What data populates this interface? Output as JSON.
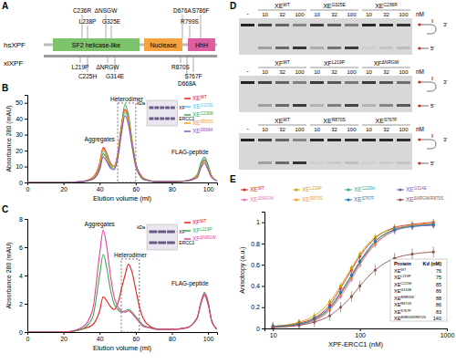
{
  "panel_labels": [
    "A",
    "B",
    "C",
    "D",
    "E"
  ],
  "diagram": {
    "proteins": [
      {
        "name": "hsXPF",
        "mutations": [
          "C236R",
          "L238P",
          "ΔNSGW",
          "G325E",
          "D676A",
          "R799S",
          "S786F"
        ]
      },
      {
        "name": "xlXPF",
        "mutations": [
          "L219P",
          "C225H",
          "ΔNRGW",
          "G314E",
          "R870S",
          "S767F",
          "D668A"
        ]
      }
    ],
    "domains": [
      {
        "name": "SF2 helicase-like",
        "color": "#7dc36b"
      },
      {
        "name": "Nuclease",
        "color": "#f4a340"
      },
      {
        "name": "HhH",
        "color": "#dd5fa0"
      }
    ]
  },
  "chart_data": [
    {
      "type": "line",
      "x_label": "Elution volume (ml)",
      "y_label": "Absorbance 280 (mAU)",
      "x": [
        0,
        20,
        30,
        36,
        40,
        42,
        44,
        46,
        48,
        50,
        52,
        54,
        56,
        58,
        60,
        62,
        64,
        68,
        72,
        80,
        88,
        94,
        96,
        98,
        100,
        102,
        105
      ],
      "xlim": [
        0,
        105
      ],
      "xticks": [
        0,
        20,
        40,
        60,
        80,
        100
      ],
      "ylim": [
        0,
        55
      ],
      "yticks": [
        0,
        10,
        20,
        30,
        40,
        50
      ],
      "series": [
        {
          "name": "XEWT",
          "color": "#e02020",
          "values": [
            0,
            0,
            0.5,
            3,
            12,
            22,
            18,
            12,
            10,
            18,
            35,
            46,
            40,
            25,
            12,
            6,
            3,
            1,
            0.5,
            0.5,
            1,
            4,
            10,
            14,
            10,
            4,
            1
          ]
        },
        {
          "name": "XEG325E",
          "color": "#5bc8e8",
          "values": [
            0,
            0,
            0.5,
            2,
            10,
            20,
            16,
            11,
            10,
            17,
            32,
            44,
            38,
            24,
            11,
            5,
            3,
            1,
            0.5,
            0.5,
            1,
            4,
            11,
            15,
            10,
            4,
            1
          ]
        },
        {
          "name": "XEC236R",
          "color": "#3aa84a",
          "values": [
            0,
            0,
            0.5,
            2,
            9,
            18,
            15,
            10,
            9,
            16,
            34,
            49,
            42,
            26,
            12,
            5,
            2,
            1,
            0.5,
            0.5,
            1,
            5,
            12,
            16,
            11,
            4,
            1
          ]
        },
        {
          "name": "XER870S",
          "color": "#f39a1e",
          "values": [
            0,
            0,
            0.5,
            3,
            11,
            21,
            17,
            11,
            10,
            17,
            33,
            45,
            39,
            24,
            11,
            5,
            3,
            1,
            0.5,
            0.5,
            1,
            4,
            10,
            13,
            9,
            4,
            1
          ]
        },
        {
          "name": "XED668A",
          "color": "#8e4fb0",
          "values": [
            0,
            0,
            0.5,
            2,
            8,
            16,
            13,
            9,
            8,
            15,
            30,
            42,
            36,
            22,
            10,
            5,
            2,
            1,
            0.5,
            0.5,
            1,
            3,
            9,
            12,
            8,
            3,
            1
          ]
        }
      ],
      "annotations": [
        {
          "text": "Aggregates",
          "x": 40,
          "y": 26
        },
        {
          "text": "Heterodimer",
          "x": 55,
          "y": 51
        },
        {
          "text": "FLAG-peptide",
          "x": 90,
          "y": 18
        }
      ],
      "inset": {
        "title": "kDa",
        "bands": [
          "XF",
          "ERCC1"
        ]
      }
    },
    {
      "type": "line",
      "x_label": "Elution volume (ml)",
      "y_label": "Absorbance 280 (mAU)",
      "x": [
        0,
        20,
        30,
        36,
        40,
        42,
        44,
        46,
        48,
        50,
        52,
        54,
        56,
        58,
        60,
        62,
        64,
        68,
        72,
        80,
        88,
        94,
        96,
        98,
        100,
        102,
        105
      ],
      "xlim": [
        0,
        105
      ],
      "xticks": [
        0,
        20,
        40,
        60,
        80,
        100
      ],
      "ylim": [
        0,
        8
      ],
      "yticks": [
        0,
        2,
        4,
        6,
        8
      ],
      "series": [
        {
          "name": "XFWT",
          "color": "#e02020",
          "values": [
            0,
            0,
            0.2,
            0.5,
            1.5,
            2.5,
            2.2,
            1.8,
            1.6,
            2,
            3,
            4,
            4.8,
            4.2,
            3,
            1.8,
            1,
            0.4,
            0.2,
            0.2,
            0.3,
            1,
            2,
            2.6,
            2,
            0.8,
            0.2
          ]
        },
        {
          "name": "XFL219P",
          "color": "#3aa84a",
          "values": [
            0,
            0,
            0.2,
            1,
            4,
            5.5,
            4.5,
            3,
            2,
            1.6,
            1.4,
            1.5,
            1.6,
            1.4,
            1.1,
            0.8,
            0.5,
            0.3,
            0.2,
            0.2,
            0.3,
            1,
            2,
            2.8,
            2.2,
            0.8,
            0.2
          ]
        },
        {
          "name": "XFΔNRGW",
          "color": "#e0409a",
          "values": [
            0,
            0,
            0.3,
            1.5,
            5.5,
            7.2,
            6,
            4,
            2.5,
            1.8,
            1.5,
            1.4,
            1.5,
            1.3,
            1,
            0.7,
            0.4,
            0.3,
            0.2,
            0.2,
            0.3,
            1,
            2.1,
            2.7,
            2.1,
            0.8,
            0.2
          ]
        }
      ],
      "annotations": [
        {
          "text": "Aggregates",
          "x": 40,
          "y": 7.5
        },
        {
          "text": "Heterodimer",
          "x": 57,
          "y": 5.3
        },
        {
          "text": "FLAG-peptide",
          "x": 90,
          "y": 3.3
        }
      ],
      "inset": {
        "title": "kDa",
        "bands": [
          "XF",
          "ERCC1"
        ]
      }
    },
    {
      "type": "line",
      "marker": "circle",
      "log": "x",
      "x_label": "XPF-ERCC1 (nM)",
      "y_label": "Anisotropy (a.u.)",
      "x": [
        10,
        20,
        30,
        45,
        60,
        80,
        100,
        150,
        250,
        400,
        700
      ],
      "xlim": [
        8,
        1000
      ],
      "xticks": [
        10,
        100,
        1000
      ],
      "ylim": [
        0,
        1.1
      ],
      "yticks": [
        0,
        0.2,
        0.4,
        0.6,
        0.8,
        1
      ],
      "table_header": [
        "Protein",
        "Kd (nM)"
      ],
      "series": [
        {
          "name": "XEWT",
          "color": "#d62728",
          "kd": 76,
          "values": [
            0.02,
            0.05,
            0.1,
            0.22,
            0.38,
            0.55,
            0.68,
            0.85,
            0.95,
            0.98,
            1.0
          ],
          "errors": [
            0.03,
            0.03,
            0.03,
            0.03,
            0.03,
            0.03,
            0.03,
            0.03,
            0.03,
            0.03,
            0.03
          ]
        },
        {
          "name": "XEL219P",
          "color": "#c8a600",
          "kd": 75,
          "values": [
            0.02,
            0.06,
            0.12,
            0.25,
            0.4,
            0.57,
            0.7,
            0.86,
            0.94,
            0.97,
            0.99
          ],
          "errors": [
            0.03,
            0.03,
            0.03,
            0.03,
            0.03,
            0.03,
            0.03,
            0.03,
            0.03,
            0.03,
            0.03
          ]
        },
        {
          "name": "XEC225H",
          "color": "#2ca6a4",
          "kd": 85,
          "values": [
            0.01,
            0.04,
            0.09,
            0.19,
            0.33,
            0.5,
            0.63,
            0.82,
            0.93,
            0.97,
            0.98
          ],
          "errors": [
            0.03,
            0.03,
            0.03,
            0.03,
            0.03,
            0.03,
            0.03,
            0.03,
            0.03,
            0.03,
            0.03
          ]
        },
        {
          "name": "XEG314E",
          "color": "#7d5ba6",
          "kd": 86,
          "values": [
            0.01,
            0.04,
            0.08,
            0.18,
            0.32,
            0.48,
            0.62,
            0.8,
            0.92,
            0.96,
            0.97
          ],
          "errors": [
            0.03,
            0.03,
            0.03,
            0.03,
            0.03,
            0.03,
            0.03,
            0.03,
            0.03,
            0.03,
            0.03
          ]
        },
        {
          "name": "XEΔNRGW",
          "color": "#e377c2",
          "kd": 88,
          "values": [
            0.01,
            0.03,
            0.07,
            0.17,
            0.3,
            0.46,
            0.6,
            0.79,
            0.92,
            0.96,
            0.98
          ],
          "errors": [
            0.03,
            0.03,
            0.03,
            0.03,
            0.03,
            0.03,
            0.03,
            0.03,
            0.03,
            0.03,
            0.03
          ]
        },
        {
          "name": "XER870S",
          "color": "#f0a030",
          "kd": 86,
          "values": [
            0.01,
            0.04,
            0.08,
            0.18,
            0.32,
            0.48,
            0.61,
            0.8,
            0.93,
            0.97,
            0.99
          ],
          "errors": [
            0.03,
            0.03,
            0.03,
            0.03,
            0.03,
            0.03,
            0.03,
            0.03,
            0.03,
            0.03,
            0.03
          ]
        },
        {
          "name": "XES767F",
          "color": "#1f77b4",
          "kd": 83,
          "values": [
            0.02,
            0.04,
            0.09,
            0.2,
            0.34,
            0.5,
            0.63,
            0.82,
            0.93,
            0.96,
            0.98
          ],
          "errors": [
            0.03,
            0.03,
            0.03,
            0.03,
            0.03,
            0.03,
            0.03,
            0.03,
            0.03,
            0.03,
            0.03
          ]
        },
        {
          "name": "XEΔNRGW/R870S",
          "color": "#8c564b",
          "kd": 140,
          "values": [
            0.01,
            0.03,
            0.06,
            0.12,
            0.2,
            0.3,
            0.4,
            0.55,
            0.66,
            0.7,
            0.72
          ],
          "errors": [
            0.05,
            0.05,
            0.05,
            0.05,
            0.05,
            0.05,
            0.05,
            0.05,
            0.05,
            0.05,
            0.05
          ]
        }
      ]
    }
  ],
  "gels": [
    {
      "blank": "-",
      "unit": "nM",
      "ends": [
        "3'",
        "5'"
      ],
      "groups": [
        {
          "name": "XEWT",
          "conc": [
            10,
            32,
            100
          ],
          "product": [
            0.3,
            0.6,
            0.9
          ]
        },
        {
          "name": "XEG325E",
          "conc": [
            10,
            32,
            100
          ],
          "product": [
            0.25,
            0.55,
            0.85
          ]
        },
        {
          "name": "XEC236R",
          "conc": [
            10,
            32,
            100
          ],
          "product": [
            0.05,
            0.1,
            0.15
          ]
        }
      ]
    },
    {
      "blank": "-",
      "unit": "nM",
      "ends": [
        "3'",
        "5'"
      ],
      "groups": [
        {
          "name": "XFWT",
          "conc": [
            10,
            32,
            100
          ],
          "product": [
            0.3,
            0.6,
            0.85
          ]
        },
        {
          "name": "XFL219P",
          "conc": [
            10,
            32,
            100
          ],
          "product": [
            0.2,
            0.5,
            0.8
          ]
        },
        {
          "name": "XFΔNRGW",
          "conc": [
            10,
            32,
            100
          ],
          "product": [
            0.2,
            0.45,
            0.7
          ]
        }
      ]
    },
    {
      "blank": "-",
      "unit": "nM",
      "ends": [
        "3'",
        "5'"
      ],
      "groups": [
        {
          "name": "XEWT",
          "conc": [
            10,
            32,
            100
          ],
          "product": [
            0.3,
            0.6,
            0.9
          ]
        },
        {
          "name": "XER870S",
          "conc": [
            10,
            32,
            100
          ],
          "product": [
            0.05,
            0.08,
            0.12
          ]
        },
        {
          "name": "XES767F",
          "conc": [
            10,
            32,
            100
          ],
          "product": [
            0.04,
            0.06,
            0.1
          ]
        }
      ]
    }
  ]
}
